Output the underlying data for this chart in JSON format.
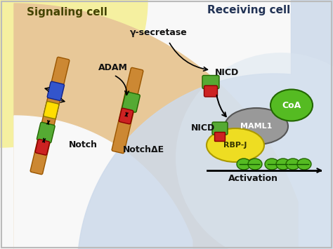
{
  "signaling_cell_label": "Signaling cell",
  "receiving_cell_label": "Receiving cell",
  "adam_label": "ADAM",
  "gamma_label": "γ-secretase",
  "nicd_label1": "NICD",
  "nicd_label2": "NICD",
  "notch_label": "Notch",
  "notch_de_label": "NotchΔE",
  "maml1_label": "MAML1",
  "rbpj_label": "RBP-J",
  "coa_label": "CoA",
  "activation_label": "Activation",
  "yellow_bg": "#f5f0a0",
  "tan_light": "#e8c898",
  "tan_dark": "#d4a870",
  "blue_bg": "#b8cce0",
  "blue_light": "#cddaeb",
  "white_bg": "#f8f8f8",
  "notch_receptor_color": "#cc8833",
  "notch_receptor_edge": "#995500",
  "green_domain_color": "#55aa33",
  "green_domain_edge": "#226600",
  "red_domain_color": "#cc2222",
  "red_domain_edge": "#880000",
  "yellow_domain_color": "#ffdd00",
  "yellow_domain_edge": "#887700",
  "blue_domain_color": "#3355cc",
  "blue_domain_edge": "#112288",
  "gray_maml_color": "#999999",
  "gray_maml_edge": "#555555",
  "yellow_rbpj_color": "#eedd22",
  "yellow_rbpj_edge": "#aa9900",
  "green_coa_color": "#55bb22",
  "green_coa_edge": "#226600",
  "dark_text": "#111111",
  "border_color": "#bbbbbb"
}
